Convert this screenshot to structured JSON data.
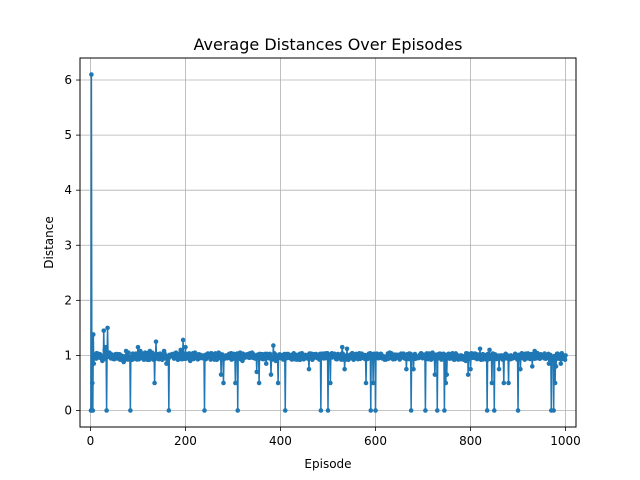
{
  "chart_data": {
    "type": "line",
    "title": "Average Distances Over Episodes",
    "xlabel": "Episode",
    "ylabel": "Distance",
    "xlim": [
      -22,
      1022
    ],
    "ylim": [
      -0.3,
      6.4
    ],
    "xticks": [
      0,
      200,
      400,
      600,
      800,
      1000
    ],
    "yticks": [
      0,
      1,
      2,
      3,
      4,
      5,
      6
    ],
    "grid": true,
    "line_color": "#1f77b4",
    "marker": "circle",
    "series": [
      {
        "name": "",
        "episodes": 1000,
        "baseline": 1.0,
        "points": [
          [
            1,
            0.0
          ],
          [
            2,
            6.1
          ],
          [
            3,
            0.0
          ],
          [
            4,
            0.5
          ],
          [
            5,
            0.0
          ],
          [
            6,
            1.38
          ],
          [
            7,
            0.85
          ],
          [
            10,
            0.95
          ],
          [
            15,
            1.0
          ],
          [
            20,
            1.02
          ],
          [
            25,
            0.9
          ],
          [
            28,
            1.45
          ],
          [
            30,
            1.1
          ],
          [
            32,
            1.15
          ],
          [
            34,
            0.0
          ],
          [
            36,
            1.5
          ],
          [
            40,
            1.05
          ],
          [
            50,
            0.95
          ],
          [
            60,
            1.02
          ],
          [
            70,
            0.88
          ],
          [
            75,
            1.08
          ],
          [
            80,
            1.05
          ],
          [
            84,
            0.0
          ],
          [
            88,
            0.92
          ],
          [
            95,
            1.03
          ],
          [
            100,
            1.15
          ],
          [
            105,
            1.08
          ],
          [
            110,
            0.95
          ],
          [
            115,
            1.05
          ],
          [
            120,
            0.92
          ],
          [
            125,
            1.08
          ],
          [
            130,
            1.05
          ],
          [
            135,
            0.5
          ],
          [
            138,
            1.25
          ],
          [
            142,
            1.0
          ],
          [
            150,
            0.95
          ],
          [
            155,
            1.08
          ],
          [
            160,
            0.85
          ],
          [
            165,
            0.0
          ],
          [
            170,
            1.0
          ],
          [
            180,
            1.05
          ],
          [
            190,
            1.1
          ],
          [
            195,
            1.28
          ],
          [
            200,
            1.15
          ],
          [
            205,
            0.95
          ],
          [
            210,
            0.9
          ],
          [
            220,
            1.05
          ],
          [
            230,
            0.95
          ],
          [
            240,
            0.0
          ],
          [
            245,
            1.02
          ],
          [
            250,
            1.0
          ],
          [
            260,
            0.95
          ],
          [
            270,
            1.05
          ],
          [
            275,
            0.65
          ],
          [
            280,
            0.5
          ],
          [
            285,
            1.0
          ],
          [
            295,
            0.95
          ],
          [
            305,
            0.5
          ],
          [
            310,
            0.0
          ],
          [
            315,
            1.05
          ],
          [
            320,
            0.9
          ],
          [
            330,
            1.0
          ],
          [
            340,
            1.05
          ],
          [
            350,
            0.7
          ],
          [
            355,
            0.5
          ],
          [
            360,
            1.0
          ],
          [
            370,
            0.85
          ],
          [
            375,
            0.95
          ],
          [
            380,
            0.65
          ],
          [
            385,
            1.18
          ],
          [
            390,
            0.9
          ],
          [
            395,
            0.5
          ],
          [
            400,
            0.95
          ],
          [
            405,
            1.0
          ],
          [
            410,
            0.0
          ],
          [
            415,
            1.02
          ],
          [
            420,
            0.95
          ],
          [
            430,
            1.0
          ],
          [
            440,
            0.92
          ],
          [
            450,
            1.0
          ],
          [
            460,
            0.75
          ],
          [
            470,
            0.95
          ],
          [
            480,
            0.98
          ],
          [
            485,
            0.0
          ],
          [
            490,
            1.0
          ],
          [
            495,
            0.95
          ],
          [
            500,
            0.0
          ],
          [
            505,
            0.5
          ],
          [
            510,
            1.0
          ],
          [
            520,
            0.95
          ],
          [
            530,
            1.15
          ],
          [
            535,
            0.75
          ],
          [
            540,
            1.12
          ],
          [
            545,
            0.95
          ],
          [
            550,
            1.0
          ],
          [
            560,
            0.95
          ],
          [
            570,
            0.98
          ],
          [
            580,
            0.5
          ],
          [
            585,
            0.95
          ],
          [
            590,
            0.0
          ],
          [
            595,
            0.5
          ],
          [
            600,
            0.0
          ],
          [
            605,
            0.95
          ],
          [
            610,
            1.0
          ],
          [
            620,
            0.95
          ],
          [
            630,
            1.05
          ],
          [
            640,
            0.95
          ],
          [
            650,
            1.0
          ],
          [
            660,
            0.95
          ],
          [
            665,
            0.75
          ],
          [
            670,
            0.95
          ],
          [
            675,
            0.0
          ],
          [
            680,
            0.75
          ],
          [
            690,
            0.95
          ],
          [
            700,
            1.0
          ],
          [
            705,
            0.0
          ],
          [
            710,
            0.95
          ],
          [
            720,
            1.05
          ],
          [
            725,
            0.65
          ],
          [
            730,
            0.0
          ],
          [
            735,
            0.95
          ],
          [
            740,
            1.02
          ],
          [
            745,
            0.0
          ],
          [
            748,
            0.5
          ],
          [
            750,
            0.65
          ],
          [
            755,
            0.95
          ],
          [
            760,
            1.0
          ],
          [
            770,
            0.95
          ],
          [
            780,
            1.0
          ],
          [
            790,
            0.9
          ],
          [
            795,
            0.65
          ],
          [
            800,
            0.75
          ],
          [
            810,
            0.95
          ],
          [
            820,
            1.12
          ],
          [
            830,
            0.95
          ],
          [
            835,
            0.0
          ],
          [
            840,
            1.1
          ],
          [
            845,
            0.5
          ],
          [
            850,
            0.0
          ],
          [
            855,
            0.95
          ],
          [
            860,
            0.75
          ],
          [
            865,
            1.0
          ],
          [
            870,
            0.5
          ],
          [
            875,
            0.95
          ],
          [
            880,
            0.5
          ],
          [
            885,
            1.0
          ],
          [
            890,
            0.95
          ],
          [
            900,
            0.0
          ],
          [
            905,
            0.75
          ],
          [
            910,
            0.95
          ],
          [
            920,
            1.02
          ],
          [
            930,
            0.8
          ],
          [
            935,
            1.08
          ],
          [
            940,
            0.95
          ],
          [
            950,
            1.0
          ],
          [
            960,
            0.95
          ],
          [
            965,
            0.85
          ],
          [
            970,
            0.0
          ],
          [
            975,
            0.0
          ],
          [
            978,
            0.5
          ],
          [
            980,
            0.8
          ],
          [
            985,
            0.95
          ],
          [
            990,
            0.85
          ],
          [
            995,
            1.0
          ],
          [
            1000,
            1.0
          ]
        ]
      }
    ]
  }
}
